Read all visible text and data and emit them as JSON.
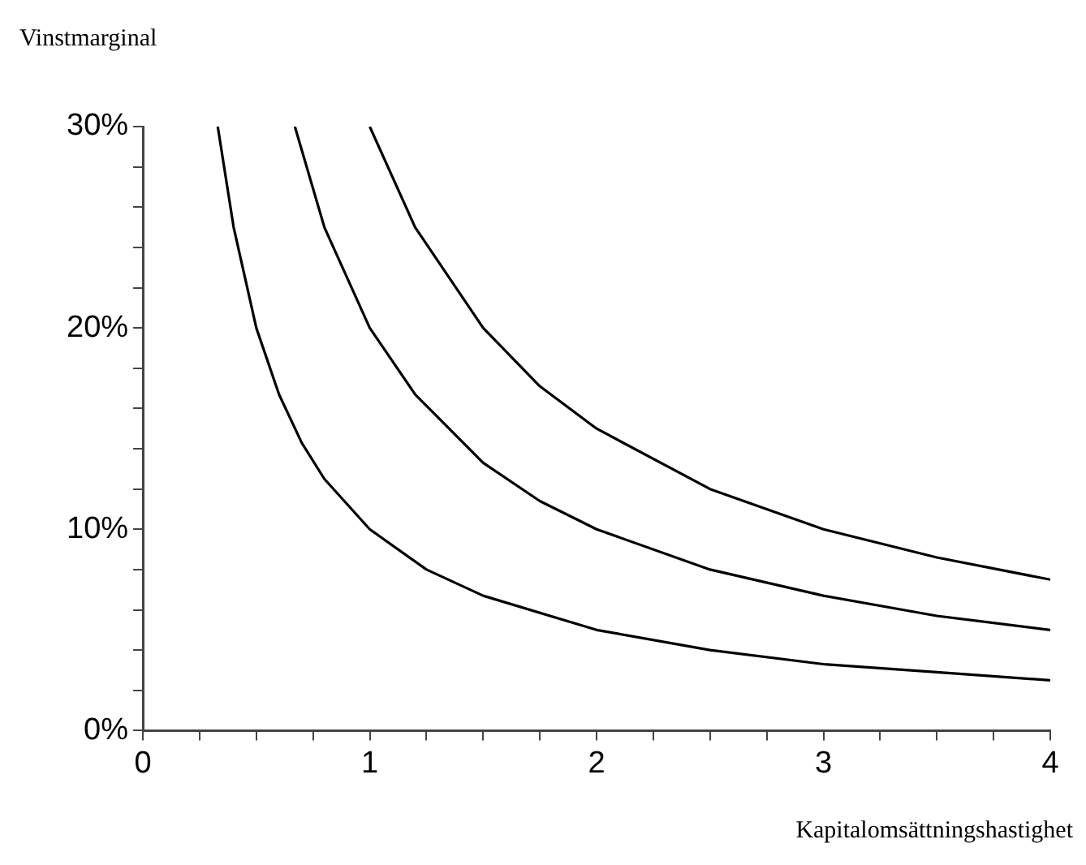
{
  "chart_data": {
    "type": "line",
    "xlabel": "Kapitalomsättningshastighet",
    "ylabel": "Vinstmarginal",
    "xlim": [
      0,
      4
    ],
    "ylim": [
      0,
      30
    ],
    "xticks": [
      0,
      {
        "value": 0.25,
        "label": null
      },
      {
        "value": 0.5,
        "label": null
      },
      {
        "value": 0.75,
        "label": null
      },
      1,
      {
        "value": 1.25,
        "label": null
      },
      {
        "value": 1.5,
        "label": null
      },
      {
        "value": 1.75,
        "label": null
      },
      2,
      {
        "value": 2.25,
        "label": null
      },
      {
        "value": 2.5,
        "label": null
      },
      {
        "value": 2.75,
        "label": null
      },
      3,
      {
        "value": 3.25,
        "label": null
      },
      {
        "value": 3.5,
        "label": null
      },
      {
        "value": 3.75,
        "label": null
      },
      4
    ],
    "yticks": [
      {
        "value": 0,
        "label": "0%"
      },
      {
        "value": 2,
        "label": null
      },
      {
        "value": 4,
        "label": null
      },
      {
        "value": 6,
        "label": null
      },
      {
        "value": 8,
        "label": null
      },
      {
        "value": 10,
        "label": "10%"
      },
      {
        "value": 12,
        "label": null
      },
      {
        "value": 14,
        "label": null
      },
      {
        "value": 16,
        "label": null
      },
      {
        "value": 18,
        "label": null
      },
      {
        "value": 20,
        "label": "20%"
      },
      {
        "value": 22,
        "label": null
      },
      {
        "value": 24,
        "label": null
      },
      {
        "value": 26,
        "label": null
      },
      {
        "value": 28,
        "label": null
      },
      {
        "value": 30,
        "label": "30%"
      }
    ],
    "grid": false,
    "legend": false,
    "marker": "none",
    "line_style": "solid",
    "series": [
      {
        "color": "#000000",
        "x": [
          0.33,
          0.4,
          0.5,
          0.6,
          0.7,
          0.8,
          1,
          1.25,
          1.5,
          2,
          2.5,
          3,
          3.5,
          4
        ],
        "values": [
          30,
          25,
          20,
          16.7,
          14.3,
          12.5,
          10,
          8,
          6.7,
          5,
          4,
          3.3,
          2.9,
          2.5
        ]
      },
      {
        "color": "#000000",
        "x": [
          0.67,
          0.8,
          1,
          1.2,
          1.5,
          1.75,
          2,
          2.5,
          3,
          3.5,
          4
        ],
        "values": [
          30,
          25,
          20,
          16.7,
          13.3,
          11.4,
          10,
          8,
          6.7,
          5.7,
          5
        ]
      },
      {
        "color": "#000000",
        "x": [
          1,
          1.2,
          1.5,
          1.75,
          2,
          2.5,
          3,
          3.5,
          4
        ],
        "values": [
          30,
          25,
          20,
          17.1,
          15,
          12,
          10,
          8.6,
          7.5
        ]
      }
    ]
  }
}
